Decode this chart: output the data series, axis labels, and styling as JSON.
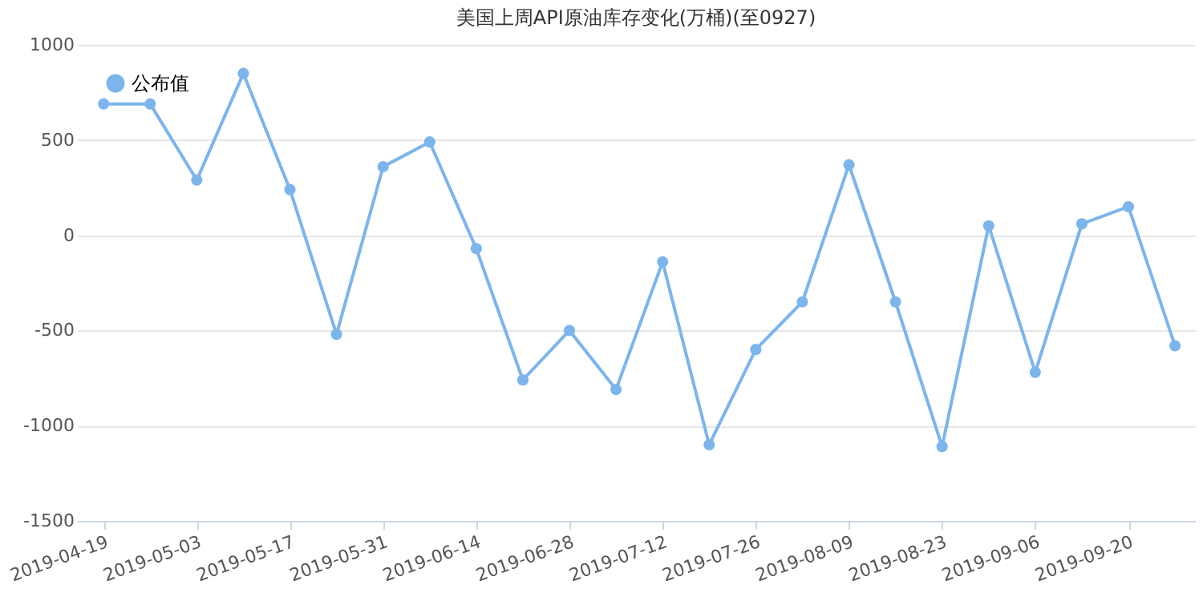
{
  "chart_data": {
    "type": "line",
    "title": "美国上周API原油库存变化(万桶)(至0927)",
    "x": [
      "2019-04-19",
      "2019-04-26",
      "2019-05-03",
      "2019-05-10",
      "2019-05-17",
      "2019-05-24",
      "2019-05-31",
      "2019-06-07",
      "2019-06-14",
      "2019-06-21",
      "2019-06-28",
      "2019-07-05",
      "2019-07-12",
      "2019-07-19",
      "2019-07-26",
      "2019-08-02",
      "2019-08-09",
      "2019-08-16",
      "2019-08-23",
      "2019-08-30",
      "2019-09-06",
      "2019-09-13",
      "2019-09-20",
      "2019-09-27"
    ],
    "series": [
      {
        "name": "公布值",
        "color": "#7cb5ec",
        "values": [
          690,
          690,
          290,
          850,
          240,
          -520,
          360,
          490,
          -70,
          -760,
          -500,
          -810,
          -140,
          -1100,
          -600,
          -350,
          370,
          -350,
          -1110,
          50,
          -720,
          60,
          150,
          -580
        ]
      }
    ],
    "xlim": [
      "2019-04-15",
      "2019-09-30"
    ],
    "xticks": [
      "2019-04-19",
      "2019-05-03",
      "2019-05-17",
      "2019-05-31",
      "2019-06-14",
      "2019-06-28",
      "2019-07-12",
      "2019-07-26",
      "2019-08-09",
      "2019-08-23",
      "2019-09-06",
      "2019-09-20"
    ],
    "ylim": [
      -1500,
      1000
    ],
    "yticks": [
      -1500,
      -1000,
      -500,
      0,
      500,
      1000
    ],
    "grid": "y",
    "legend": "top left",
    "marker": "circle",
    "line_style": "solid"
  }
}
